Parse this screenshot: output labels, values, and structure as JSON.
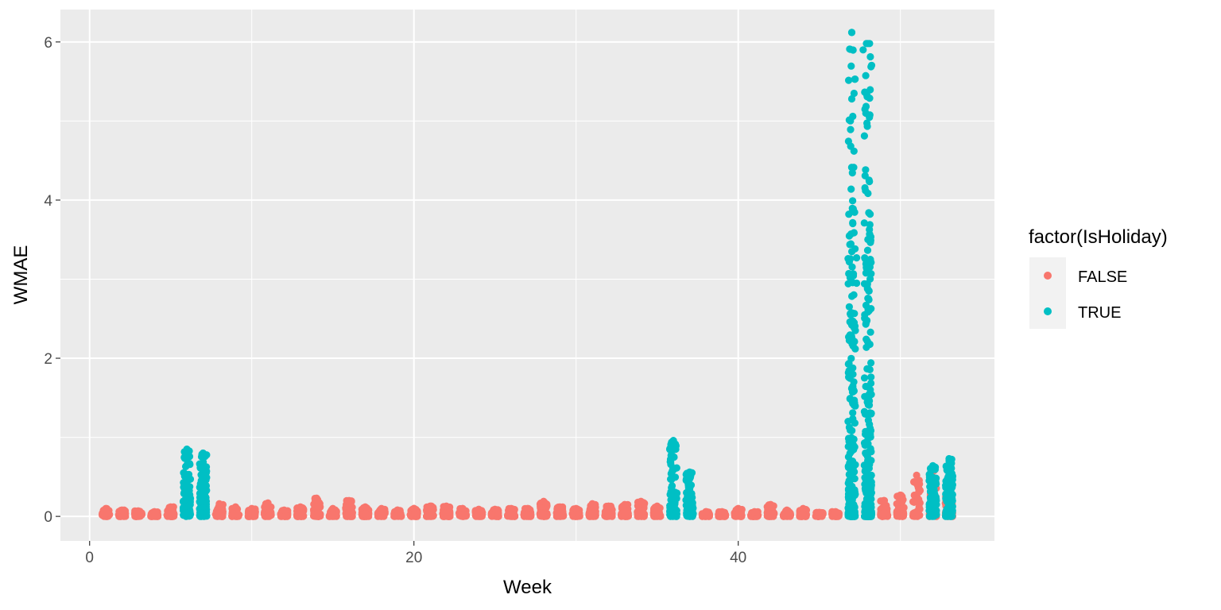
{
  "chart_data": {
    "type": "scatter",
    "title": "",
    "xlabel": "Week",
    "ylabel": "WMAE",
    "xlim": [
      -1.8,
      55.8
    ],
    "ylim": [
      -0.31,
      6.41
    ],
    "x_ticks": [
      0,
      20,
      40
    ],
    "x_tick_labels": [
      "0",
      "20",
      "40"
    ],
    "y_ticks": [
      0,
      2,
      4,
      6
    ],
    "y_tick_labels": [
      "0",
      "2",
      "4",
      "6"
    ],
    "grid": true,
    "legend": {
      "title": "factor(IsHoliday)",
      "placement": "right",
      "entries": [
        "FALSE",
        "TRUE"
      ]
    },
    "colors": {
      "FALSE": "#F8766D",
      "TRUE": "#00BFC4",
      "panel": "#EBEBEB",
      "grid": "#FFFFFF"
    },
    "series": [
      {
        "name": "FALSE",
        "color": "#F8766D",
        "weeks": [
          1,
          2,
          3,
          4,
          5,
          8,
          9,
          10,
          11,
          12,
          13,
          14,
          15,
          16,
          17,
          18,
          19,
          20,
          21,
          22,
          23,
          24,
          25,
          26,
          27,
          28,
          29,
          30,
          31,
          32,
          33,
          34,
          35,
          38,
          39,
          40,
          41,
          42,
          43,
          44,
          45,
          46,
          49,
          50,
          51,
          52,
          53
        ],
        "max_wmae": [
          0.1,
          0.08,
          0.07,
          0.06,
          0.12,
          0.16,
          0.12,
          0.1,
          0.17,
          0.08,
          0.12,
          0.23,
          0.1,
          0.2,
          0.12,
          0.1,
          0.08,
          0.1,
          0.13,
          0.13,
          0.1,
          0.09,
          0.09,
          0.1,
          0.1,
          0.19,
          0.12,
          0.1,
          0.16,
          0.13,
          0.15,
          0.19,
          0.13,
          0.06,
          0.06,
          0.1,
          0.06,
          0.15,
          0.08,
          0.1,
          0.05,
          0.06,
          0.2,
          0.27,
          0.52,
          0.6,
          0.25
        ]
      },
      {
        "name": "TRUE",
        "color": "#00BFC4",
        "weeks": [
          6,
          7,
          36,
          37,
          47,
          48,
          52,
          53
        ],
        "max_wmae": [
          0.85,
          0.8,
          0.96,
          0.56,
          6.12,
          5.98,
          0.64,
          0.73
        ]
      }
    ],
    "outliers": [
      {
        "series": "TRUE",
        "x": 47,
        "y": 6.12
      },
      {
        "series": "TRUE",
        "x": 47,
        "y": 5.28
      },
      {
        "series": "TRUE",
        "x": 47.7,
        "y": 5.9
      },
      {
        "series": "TRUE",
        "x": 48.1,
        "y": 5.98
      },
      {
        "series": "TRUE",
        "x": 47.85,
        "y": 4.12
      },
      {
        "series": "TRUE",
        "x": 48.05,
        "y": 3.84
      },
      {
        "series": "TRUE",
        "x": 48.1,
        "y": 3.57
      },
      {
        "series": "TRUE",
        "x": 47.3,
        "y": 3.27
      },
      {
        "series": "TRUE",
        "x": 47.8,
        "y": 3.27
      },
      {
        "series": "TRUE",
        "x": 48.15,
        "y": 3.25
      },
      {
        "series": "TRUE",
        "x": 46.85,
        "y": 3.22
      },
      {
        "series": "TRUE",
        "x": 47.9,
        "y": 3.15
      },
      {
        "series": "TRUE",
        "x": 46.9,
        "y": 3.02
      },
      {
        "series": "TRUE",
        "x": 47.3,
        "y": 2.95
      },
      {
        "series": "TRUE",
        "x": 48.05,
        "y": 2.85
      },
      {
        "series": "TRUE",
        "x": 46.85,
        "y": 2.65
      },
      {
        "series": "TRUE",
        "x": 47.8,
        "y": 2.55
      },
      {
        "series": "TRUE",
        "x": 47.15,
        "y": 2.45
      }
    ]
  }
}
